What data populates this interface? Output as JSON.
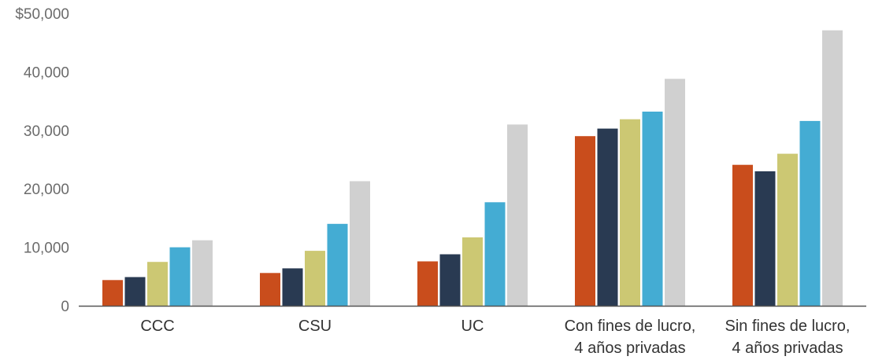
{
  "chart_data": {
    "type": "bar",
    "title": "",
    "xlabel": "",
    "ylabel": "",
    "ylim": [
      0,
      50000
    ],
    "y_ticks": [
      {
        "value": 0,
        "label": "0"
      },
      {
        "value": 10000,
        "label": "10,000"
      },
      {
        "value": 20000,
        "label": "20,000"
      },
      {
        "value": 30000,
        "label": "30,000"
      },
      {
        "value": 40000,
        "label": "40,000"
      },
      {
        "value": 50000,
        "label": "$50,000"
      }
    ],
    "categories": [
      [
        "CCC"
      ],
      [
        "CSU"
      ],
      [
        "UC"
      ],
      [
        "Con fines de lucro,",
        "4 años privadas"
      ],
      [
        "Sin fines de lucro,",
        "4 años privadas"
      ]
    ],
    "series": [
      {
        "color": "#c94d1c",
        "values": [
          4400,
          5600,
          7600,
          29000,
          24100
        ]
      },
      {
        "color": "#293a52",
        "values": [
          4900,
          6400,
          8800,
          30300,
          23000
        ]
      },
      {
        "color": "#ccc873",
        "values": [
          7500,
          9400,
          11700,
          31900,
          26000
        ]
      },
      {
        "color": "#44acd3",
        "values": [
          10000,
          14000,
          17700,
          33200,
          31600
        ]
      },
      {
        "color": "#d0d0d0",
        "values": [
          11200,
          21300,
          31000,
          38800,
          47100
        ]
      }
    ],
    "grid": false,
    "legend": "none"
  }
}
